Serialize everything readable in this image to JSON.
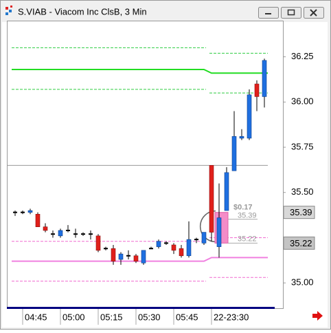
{
  "window": {
    "title": "S.VIAB - Viacom Inc ClsB, 3 Min"
  },
  "chart_data": {
    "type": "candlestick",
    "categories": [
      null,
      "04:45",
      null,
      null,
      null,
      null,
      "05:00",
      null,
      null,
      null,
      null,
      "05:15",
      null,
      null,
      null,
      null,
      "05:30",
      null,
      null,
      null,
      null,
      "05:45",
      null,
      null,
      null,
      null,
      "22-23:30",
      null,
      null,
      null,
      null,
      null,
      null,
      null
    ],
    "open": [
      35.39,
      35.39,
      35.39,
      35.38,
      35.31,
      35.27,
      35.26,
      35.29,
      35.27,
      35.27,
      35.27,
      35.26,
      35.19,
      35.19,
      35.13,
      35.15,
      35.15,
      35.11,
      35.19,
      35.2,
      35.22,
      35.21,
      35.19,
      35.15,
      35.24,
      35.22,
      35.65,
      35.2,
      35.4,
      35.62,
      35.8,
      35.8,
      36.1,
      36.03
    ],
    "high": [
      35.4,
      35.4,
      35.41,
      35.39,
      35.33,
      35.29,
      35.3,
      35.32,
      35.3,
      35.28,
      35.29,
      35.27,
      35.2,
      35.21,
      35.17,
      35.18,
      35.16,
      35.18,
      35.2,
      35.24,
      35.23,
      35.22,
      35.21,
      35.34,
      35.25,
      35.28,
      35.65,
      35.55,
      35.64,
      35.95,
      35.85,
      36.07,
      36.12,
      36.24
    ],
    "low": [
      35.37,
      35.38,
      35.38,
      35.31,
      35.28,
      35.25,
      35.25,
      35.28,
      35.25,
      35.26,
      35.24,
      35.17,
      35.18,
      35.1,
      35.1,
      35.13,
      35.11,
      35.1,
      35.19,
      35.19,
      35.21,
      35.16,
      35.14,
      35.14,
      35.22,
      35.21,
      35.23,
      35.14,
      35.4,
      35.62,
      35.79,
      35.79,
      35.95,
      35.97
    ],
    "close": [
      35.39,
      35.39,
      35.4,
      35.31,
      35.29,
      35.27,
      35.29,
      35.29,
      35.27,
      35.27,
      35.27,
      35.18,
      35.19,
      35.12,
      35.16,
      35.15,
      35.12,
      35.18,
      35.19,
      35.23,
      35.22,
      35.18,
      35.15,
      35.24,
      35.24,
      35.28,
      35.28,
      35.36,
      35.61,
      35.81,
      35.81,
      36.04,
      36.03,
      36.23
    ],
    "up_color": "#1f6fe0",
    "down_color": "#e0201b",
    "ylim": [
      34.86,
      36.45
    ],
    "yticks": [
      {
        "value": 35,
        "label": "35.00"
      },
      {
        "value": 35.5,
        "label": "35.50"
      },
      {
        "value": 35.75,
        "label": "35.75"
      },
      {
        "value": 36,
        "label": "36.00"
      },
      {
        "value": 36.25,
        "label": "36.25"
      }
    ],
    "indicator_lines": [
      {
        "color": "#2ecc40",
        "style": "dashed",
        "values": [
          36.3,
          36.3,
          36.3,
          36.3,
          36.3,
          36.3,
          36.3,
          36.3,
          36.3,
          36.3,
          36.3,
          36.3,
          36.3,
          36.3,
          36.3,
          36.3,
          36.3,
          36.3,
          36.3,
          36.3,
          36.3,
          36.3,
          36.3,
          36.3,
          36.3,
          36.3,
          36.27,
          36.27,
          36.27,
          36.27,
          36.27,
          36.27,
          36.27,
          36.27
        ]
      },
      {
        "color": "#22dd22",
        "style": "solid",
        "values": [
          36.18,
          36.18,
          36.18,
          36.18,
          36.18,
          36.18,
          36.18,
          36.18,
          36.18,
          36.18,
          36.18,
          36.18,
          36.18,
          36.18,
          36.18,
          36.18,
          36.18,
          36.18,
          36.18,
          36.18,
          36.18,
          36.18,
          36.18,
          36.18,
          36.18,
          36.18,
          36.16,
          36.16,
          36.16,
          36.16,
          36.16,
          36.16,
          36.16,
          36.16
        ]
      },
      {
        "color": "#2ecc40",
        "style": "dashed",
        "values": [
          36.07,
          36.07,
          36.07,
          36.07,
          36.07,
          36.07,
          36.07,
          36.07,
          36.07,
          36.07,
          36.07,
          36.07,
          36.07,
          36.07,
          36.07,
          36.07,
          36.07,
          36.07,
          36.07,
          36.07,
          36.07,
          36.07,
          36.07,
          36.07,
          36.07,
          36.07,
          36.05,
          36.05,
          36.05,
          36.05,
          36.05,
          36.05,
          36.05,
          36.05
        ]
      },
      {
        "color": "#f06ad0",
        "style": "dashed",
        "values": [
          35.23,
          35.23,
          35.23,
          35.23,
          35.23,
          35.23,
          35.23,
          35.23,
          35.23,
          35.23,
          35.23,
          35.23,
          35.23,
          35.23,
          35.23,
          35.23,
          35.23,
          35.23,
          35.23,
          35.23,
          35.23,
          35.23,
          35.23,
          35.23,
          35.23,
          35.23,
          35.25,
          35.25,
          35.25,
          35.25,
          35.25,
          35.25,
          35.25,
          35.25
        ]
      },
      {
        "color": "#f080e0",
        "style": "solid",
        "values": [
          35.12,
          35.12,
          35.12,
          35.12,
          35.12,
          35.12,
          35.12,
          35.12,
          35.12,
          35.12,
          35.12,
          35.12,
          35.12,
          35.12,
          35.12,
          35.12,
          35.12,
          35.12,
          35.12,
          35.12,
          35.12,
          35.12,
          35.12,
          35.12,
          35.12,
          35.12,
          35.14,
          35.14,
          35.14,
          35.14,
          35.14,
          35.14,
          35.14,
          35.14
        ]
      },
      {
        "color": "#f06ad0",
        "style": "dashed",
        "values": [
          35.01,
          35.01,
          35.01,
          35.01,
          35.01,
          35.01,
          35.01,
          35.01,
          35.01,
          35.01,
          35.01,
          35.01,
          35.01,
          35.01,
          35.01,
          35.01,
          35.01,
          35.01,
          35.01,
          35.01,
          35.01,
          35.01,
          35.01,
          35.01,
          35.01,
          35.01,
          35.03,
          35.03,
          35.03,
          35.03,
          35.03,
          35.03,
          35.03,
          35.03
        ]
      }
    ],
    "reference_lines": [
      {
        "value": 35.65,
        "color": "#999999"
      }
    ],
    "price_markers": [
      {
        "value": 35.39,
        "label": "35.39"
      },
      {
        "value": 35.22,
        "label": "35.22"
      }
    ],
    "measure": {
      "change_label": "$0.17",
      "start": {
        "value": 35.39,
        "label": "35.39"
      },
      "end": {
        "value": 35.22,
        "label": "35.22"
      },
      "color": "#f48cc8"
    }
  }
}
